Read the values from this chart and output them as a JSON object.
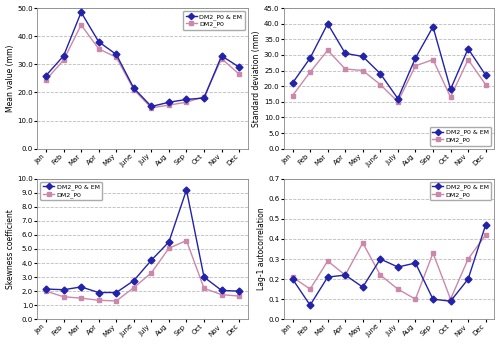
{
  "months": [
    "Jan",
    "Feb",
    "Mar",
    "Apr",
    "May",
    "June",
    "July",
    "Aug",
    "Sep",
    "Oct",
    "Nov",
    "Dec"
  ],
  "mean_dm2_em": [
    26.0,
    33.0,
    48.5,
    38.0,
    33.5,
    21.5,
    15.0,
    16.5,
    17.5,
    18.0,
    33.0,
    29.0
  ],
  "mean_dm2": [
    24.5,
    31.5,
    44.0,
    35.5,
    32.5,
    21.0,
    14.5,
    15.5,
    16.5,
    18.5,
    32.0,
    26.5
  ],
  "std_dm2_em": [
    21.0,
    29.0,
    40.0,
    30.5,
    29.5,
    24.0,
    16.0,
    29.0,
    39.0,
    19.0,
    32.0,
    23.5
  ],
  "std_dm2": [
    17.0,
    24.5,
    31.5,
    25.5,
    25.0,
    20.5,
    15.0,
    26.5,
    28.5,
    16.5,
    28.5,
    20.5
  ],
  "skew_dm2_em": [
    2.15,
    2.1,
    2.3,
    1.9,
    1.9,
    2.75,
    4.2,
    5.5,
    9.2,
    3.0,
    2.05,
    2.0
  ],
  "skew_dm2": [
    2.0,
    1.6,
    1.5,
    1.35,
    1.3,
    2.25,
    3.3,
    5.05,
    5.6,
    2.2,
    1.75,
    1.65
  ],
  "lag1_dm2_em": [
    0.2,
    0.07,
    0.21,
    0.22,
    0.16,
    0.3,
    0.26,
    0.28,
    0.1,
    0.09,
    0.2,
    0.47
  ],
  "lag1_dm2": [
    0.21,
    0.15,
    0.29,
    0.22,
    0.38,
    0.22,
    0.15,
    0.1,
    0.33,
    0.1,
    0.3,
    0.42
  ],
  "color_em": "#2222aa",
  "color_dm2": "#cc88aa",
  "marker_em": "D",
  "marker_dm2": "s",
  "markersize": 3.5,
  "linewidth": 1.0,
  "grid_color": "#bbbbbb",
  "bg_color": "#ffffff",
  "ylabel_mean": "Mean value (mm)",
  "ylabel_std": "Standard deviation (mm)",
  "ylabel_skew": "Skewness coefficient",
  "ylabel_lag1": "Lag-1 autocorrelation",
  "ylim_mean": [
    0.0,
    50.0
  ],
  "ylim_std": [
    0.0,
    45.0
  ],
  "ylim_skew": [
    0.0,
    10.0
  ],
  "ylim_lag1": [
    0.0,
    0.7
  ],
  "yticks_mean": [
    0.0,
    10.0,
    20.0,
    30.0,
    40.0,
    50.0
  ],
  "yticks_std": [
    0.0,
    5.0,
    10.0,
    15.0,
    20.0,
    25.0,
    30.0,
    35.0,
    40.0,
    45.0
  ],
  "yticks_skew": [
    0.0,
    1.0,
    2.0,
    3.0,
    4.0,
    5.0,
    6.0,
    7.0,
    8.0,
    9.0,
    10.0
  ],
  "yticks_lag1": [
    0.0,
    0.1,
    0.2,
    0.3,
    0.4,
    0.5,
    0.6,
    0.7
  ],
  "legend_em": "DM2_P0 & EM",
  "legend_dm2": "DM2_P0",
  "legend_locs": [
    "upper right",
    "lower right",
    "upper left",
    "upper right"
  ]
}
